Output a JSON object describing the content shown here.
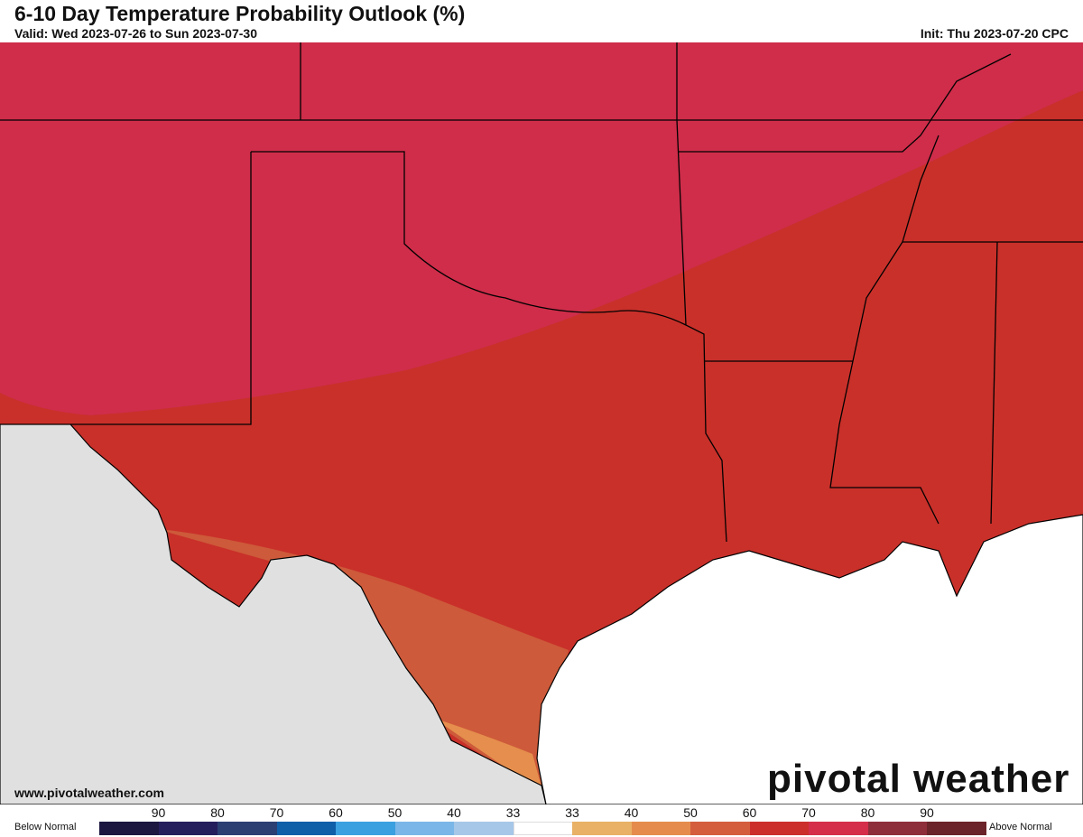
{
  "header": {
    "title": "6-10 Day Temperature Probability Outlook (%)",
    "valid": "Valid: Wed 2023-07-26 to Sun 2023-07-30",
    "init": "Init: Thu 2023-07-20 CPC"
  },
  "footer": {
    "url": "www.pivotalweather.com",
    "logo": "pivotal weather"
  },
  "legend": {
    "left_label": "Below Normal",
    "right_label": "Above Normal",
    "ticks": [
      "90",
      "80",
      "70",
      "60",
      "50",
      "40",
      "33",
      "33",
      "40",
      "50",
      "60",
      "70",
      "80",
      "90"
    ],
    "colors": [
      "#1b1740",
      "#251e5c",
      "#2b3f73",
      "#0f5ea8",
      "#3ba0e0",
      "#7ab6e8",
      "#a6c7e8",
      "#ffffff",
      "#e9b165",
      "#e58c4d",
      "#d45d3e",
      "#cc2e2b",
      "#d42e4a",
      "#8f2e3b",
      "#6b2429"
    ]
  },
  "map": {
    "categories": {
      "above_70": "#cf2d4a",
      "above_60": "#c9302a",
      "above_50": "#cd5a3a",
      "above_40": "#e58e4d"
    },
    "no_data_color": "#e0e0e0",
    "water_color": "#ffffff"
  }
}
